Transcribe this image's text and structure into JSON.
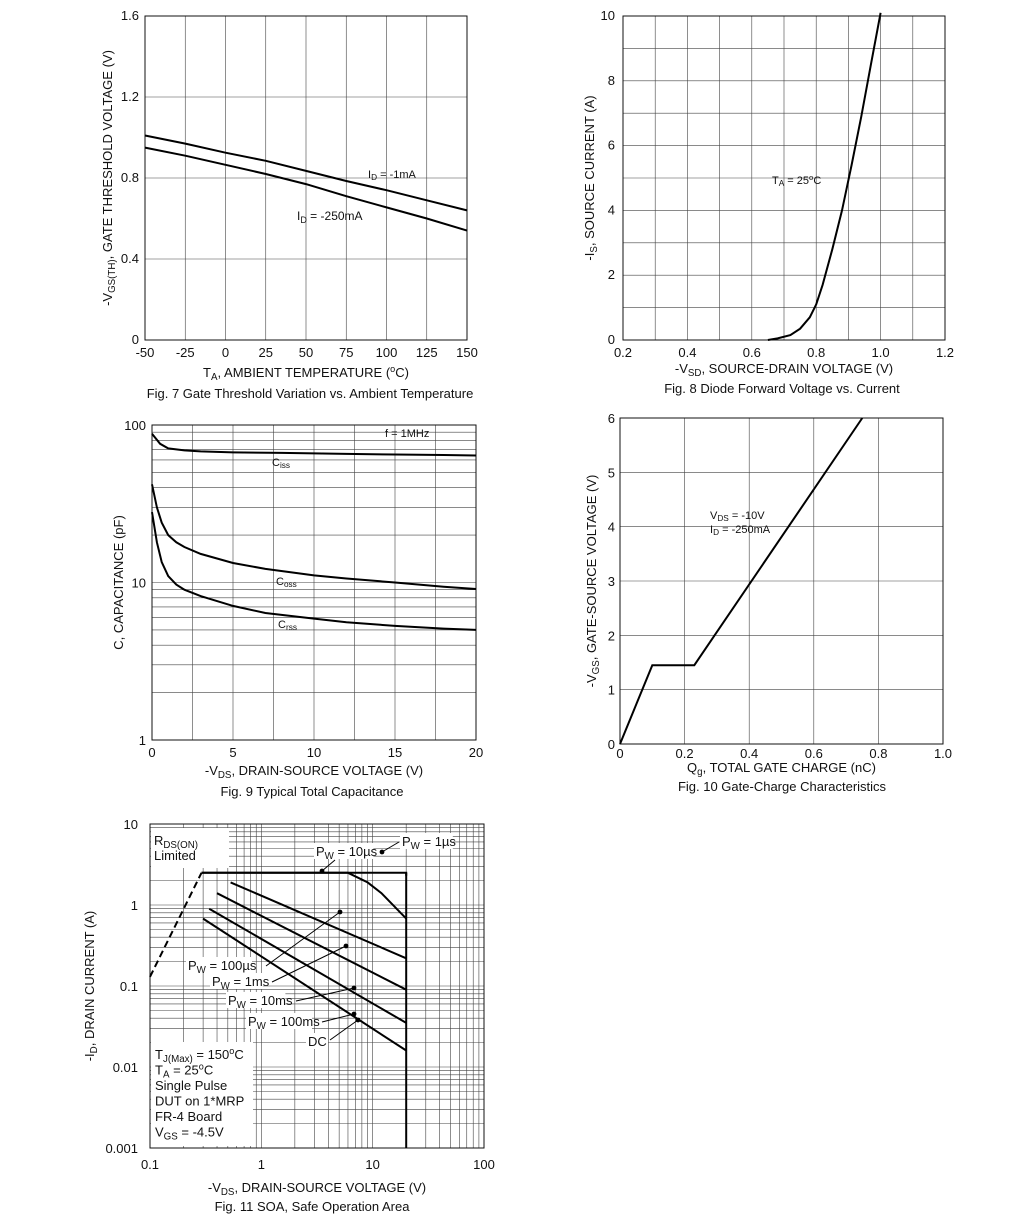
{
  "chart_data": [
    {
      "type": "line",
      "title": "Fig. 7 Gate Threshold Variation vs. Ambient Temperature",
      "xlabel": "T",
      "xlabel_sub": "A",
      "xlabel_rest": ", AMBIENT TEMPERATURE (",
      "xlabel_unit_sup": "o",
      "xlabel_unit": "C)",
      "ylabel_pre": "-V",
      "ylabel_sub": "GS(TH)",
      "ylabel_rest": ", GATE THRESHOLD VOLTAGE (V)",
      "xlim": [
        -50,
        150
      ],
      "ylim": [
        0,
        1.6
      ],
      "xticks": [
        "-50",
        "-25",
        "0",
        "25",
        "50",
        "75",
        "100",
        "125",
        "150"
      ],
      "yticks": [
        "0",
        "0.4",
        "0.8",
        "1.2",
        "1.6"
      ],
      "series": [
        {
          "name": "I_D = -1mA",
          "label_main": "I",
          "label_sub": "D",
          "label_rest": " = -1mA",
          "x": [
            -50,
            -25,
            0,
            25,
            50,
            75,
            100,
            125,
            150
          ],
          "y": [
            1.01,
            0.97,
            0.925,
            0.885,
            0.835,
            0.785,
            0.74,
            0.69,
            0.64
          ]
        },
        {
          "name": "I_D = -250mA",
          "label_main": "I",
          "label_sub": "D",
          "label_rest": " = -250mA",
          "x": [
            -50,
            -25,
            0,
            25,
            50,
            75,
            100,
            125,
            150
          ],
          "y": [
            0.95,
            0.91,
            0.865,
            0.82,
            0.77,
            0.71,
            0.655,
            0.6,
            0.54
          ]
        }
      ]
    },
    {
      "type": "line",
      "title": "Fig. 8 Diode Forward Voltage vs. Current",
      "xlabel_pre": "-V",
      "xlabel_sub": "SD",
      "xlabel_rest": ", SOURCE-DRAIN VOLTAGE (V)",
      "ylabel_pre": "-I",
      "ylabel_sub": "S",
      "ylabel_rest": ", SOURCE CURRENT (A)",
      "xlim": [
        0.2,
        1.2
      ],
      "ylim": [
        0,
        10
      ],
      "xticks": [
        "0.2",
        "0.4",
        "0.6",
        "0.8",
        "1.0",
        "1.2"
      ],
      "yticks": [
        "0",
        "2",
        "4",
        "6",
        "8",
        "10"
      ],
      "annotation_main": "T",
      "annotation_sub": "A",
      "annotation_rest": " = 25",
      "annotation_sup": "o",
      "annotation_unit": "C",
      "series": [
        {
          "x": [
            0.65,
            0.68,
            0.72,
            0.75,
            0.78,
            0.8,
            0.82,
            0.85,
            0.88,
            0.91,
            0.94,
            0.97,
            1.0
          ],
          "y": [
            0.0,
            0.05,
            0.15,
            0.35,
            0.7,
            1.1,
            1.7,
            2.8,
            4.0,
            5.4,
            6.9,
            8.5,
            10.1
          ]
        }
      ]
    },
    {
      "type": "line",
      "title": "Fig. 9 Typical Total Capacitance",
      "xlabel_pre": "-V",
      "xlabel_sub": "DS",
      "xlabel_rest": ", DRAIN-SOURCE VOLTAGE (V)",
      "ylabel": "C, CAPACITANCE (pF)",
      "scale_y": "log",
      "xlim": [
        0,
        20
      ],
      "ylim": [
        1,
        100
      ],
      "xticks": [
        "0",
        "5",
        "10",
        "15",
        "20"
      ],
      "yticks": [
        "1",
        "10",
        "100"
      ],
      "annotation": "f = 1MHz",
      "series": [
        {
          "name": "Ciss",
          "label_main": "C",
          "label_sub": "iss",
          "x": [
            0,
            0.5,
            1,
            2,
            3,
            5,
            8,
            10,
            12,
            15,
            18,
            20
          ],
          "y": [
            88,
            76,
            71,
            69,
            68,
            67,
            66.5,
            66,
            65.5,
            65,
            64.5,
            64
          ]
        },
        {
          "name": "Coss",
          "label_main": "C",
          "label_sub": "oss",
          "x": [
            0,
            0.3,
            0.6,
            1,
            1.5,
            2,
            3,
            5,
            7,
            10,
            12,
            15,
            18,
            20
          ],
          "y": [
            42,
            30,
            24,
            20,
            18,
            16.8,
            15.2,
            13.3,
            12.2,
            11.1,
            10.6,
            10,
            9.4,
            9.1
          ]
        },
        {
          "name": "Crss",
          "label_main": "C",
          "label_sub": "rss",
          "x": [
            0,
            0.3,
            0.6,
            1,
            1.5,
            2,
            3,
            5,
            7,
            10,
            12,
            15,
            18,
            20
          ],
          "y": [
            28,
            18,
            13.5,
            11,
            9.7,
            9,
            8.2,
            7.1,
            6.4,
            5.9,
            5.6,
            5.3,
            5.1,
            5.0
          ]
        }
      ]
    },
    {
      "type": "line",
      "title": "Fig. 10 Gate-Charge Characteristics",
      "xlabel_pre": "Q",
      "xlabel_sub": "g",
      "xlabel_rest": ", TOTAL GATE CHARGE (nC)",
      "ylabel_pre": "-V",
      "ylabel_sub": "GS",
      "ylabel_rest": ", GATE-SOURCE VOLTAGE (V)",
      "xlim": [
        0,
        1.0
      ],
      "ylim": [
        0,
        6
      ],
      "xticks": [
        "0",
        "0.2",
        "0.4",
        "0.6",
        "0.8",
        "1.0"
      ],
      "yticks": [
        "0",
        "1",
        "2",
        "3",
        "4",
        "5",
        "6"
      ],
      "annotation1_main": "V",
      "annotation1_sub": "DS",
      "annotation1_rest": " = -10V",
      "annotation2_main": "I",
      "annotation2_sub": "D",
      "annotation2_rest": " = -250mA",
      "series": [
        {
          "x": [
            0,
            0.1,
            0.23,
            0.75
          ],
          "y": [
            0,
            1.45,
            1.45,
            6.0
          ]
        }
      ]
    },
    {
      "type": "line",
      "title": "Fig. 11 SOA, Safe Operation Area",
      "xlabel_pre": "-V",
      "xlabel_sub": "DS",
      "xlabel_rest": ", DRAIN-SOURCE  VOLTAGE (V)",
      "ylabel_pre": "-I",
      "ylabel_sub": "D",
      "ylabel_rest": ", DRAIN CURRENT (A)",
      "scale_x": "log",
      "scale_y": "log",
      "xlim": [
        0.1,
        100
      ],
      "ylim": [
        0.001,
        10
      ],
      "xticks": [
        "0.1",
        "1",
        "10",
        "100"
      ],
      "yticks": [
        "0.001",
        "0.01",
        "0.1",
        "1",
        "10"
      ],
      "rds_label_main": "R",
      "rds_label_sub": "DS(ON)",
      "rds_label_line2": "Limited",
      "notes": [
        {
          "main": "T",
          "sub": "J(Max)",
          "rest": " = 150",
          "sup": "o",
          "unit": "C"
        },
        {
          "main": "T",
          "sub": "A",
          "rest": " = 25",
          "sup": "o",
          "unit": "C"
        },
        {
          "main": "Single Pulse",
          "sub": "",
          "rest": "",
          "sup": "",
          "unit": ""
        },
        {
          "main": "DUT on 1*MRP",
          "sub": "",
          "rest": "",
          "sup": "",
          "unit": ""
        },
        {
          "main": "FR-4 Board",
          "sub": "",
          "rest": "",
          "sup": "",
          "unit": ""
        },
        {
          "main": "V",
          "sub": "GS",
          "rest": " = -4.5V",
          "sup": "",
          "unit": ""
        }
      ],
      "series": [
        {
          "name": "RDS(ON) Limited",
          "dashed": true,
          "x": [
            0.1,
            0.29
          ],
          "y": [
            0.13,
            2.5
          ]
        },
        {
          "name": "PW = 1µs",
          "label_main": "P",
          "label_sub": "W",
          "label_rest": " = 1µs",
          "x": [
            0.29,
            20,
            20
          ],
          "y": [
            2.5,
            2.5,
            2.3
          ]
        },
        {
          "name": "PW = 10µs",
          "label_main": "P",
          "label_sub": "W",
          "label_rest": " = 10µs",
          "x": [
            0.29,
            6,
            9,
            12,
            20
          ],
          "y": [
            2.5,
            2.5,
            1.9,
            1.4,
            0.68
          ]
        },
        {
          "name": "PW = 100µs",
          "label_main": "P",
          "label_sub": "W",
          "label_rest": " = 100µs",
          "x": [
            0.53,
            20
          ],
          "y": [
            1.9,
            0.22
          ]
        },
        {
          "name": "PW = 1ms",
          "label_main": "P",
          "label_sub": "W",
          "label_rest": " = 1ms",
          "x": [
            0.4,
            20
          ],
          "y": [
            1.4,
            0.09
          ]
        },
        {
          "name": "PW = 10ms",
          "label_main": "P",
          "label_sub": "W",
          "label_rest": " = 10ms",
          "x": [
            0.34,
            20
          ],
          "y": [
            0.9,
            0.035
          ]
        },
        {
          "name": "PW = 100ms",
          "label_main": "P",
          "label_sub": "W",
          "label_rest": " = 100ms",
          "x": [
            0.3,
            20
          ],
          "y": [
            0.68,
            0.016
          ]
        },
        {
          "name": "DC",
          "label_main": "DC",
          "label_sub": "",
          "label_rest": "",
          "x": [
            20,
            20
          ],
          "y": [
            2.5,
            0.001
          ]
        }
      ]
    }
  ]
}
